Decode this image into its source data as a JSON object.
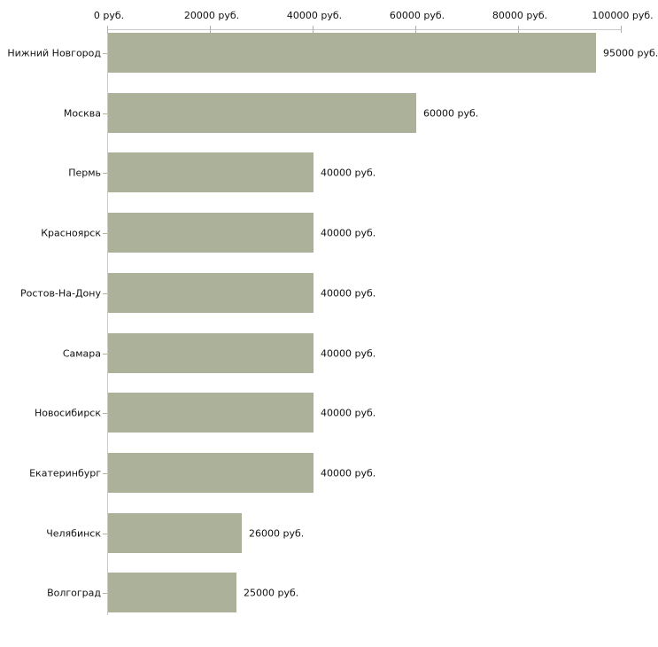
{
  "chart_data": {
    "type": "bar",
    "orientation": "horizontal",
    "title": "",
    "xlabel": "",
    "ylabel": "",
    "unit": "руб.",
    "categories": [
      "Нижний Новгород",
      "Москва",
      "Пермь",
      "Красноярск",
      "Ростов-На-Дону",
      "Самара",
      "Новосибирск",
      "Екатеринбург",
      "Челябинск",
      "Волгоград"
    ],
    "values": [
      95000,
      60000,
      40000,
      40000,
      40000,
      40000,
      40000,
      40000,
      26000,
      25000
    ],
    "value_labels": [
      "95000 руб.",
      "60000 руб.",
      "40000 руб.",
      "40000 руб.",
      "40000 руб.",
      "40000 руб.",
      "40000 руб.",
      "40000 руб.",
      "26000 руб.",
      "25000 руб."
    ],
    "xlim": [
      0,
      100000
    ],
    "x_ticks": [
      0,
      20000,
      40000,
      60000,
      80000,
      100000
    ],
    "x_tick_labels": [
      "0 руб.",
      "20000 руб.",
      "40000 руб.",
      "60000 руб.",
      "80000 руб.",
      "100000 руб."
    ],
    "axis_position": "top",
    "grid": false,
    "legend": false,
    "colors": {
      "bar_fill": "#acb29a",
      "axis_line": "#c9c9c9",
      "tick_mark": "#b3b398",
      "text": "#111111",
      "background": "#ffffff"
    }
  }
}
